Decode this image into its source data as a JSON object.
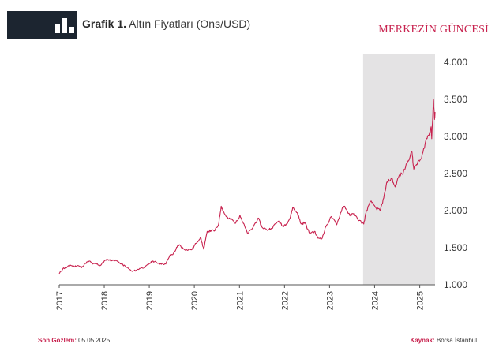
{
  "header": {
    "figure_label": "Grafik 1.",
    "title": "Altın Fiyatları (Ons/USD)",
    "brand": "MERKEZİN GÜNCESİ"
  },
  "footer": {
    "last_obs_label": "Son Gözlem:",
    "last_obs_value": "05.05.2025",
    "source_label": "Kaynak:",
    "source_value": "Borsa İstanbul"
  },
  "colors": {
    "line": "#c8234f",
    "highlight": "#e4e3e4",
    "header_badge": "#1c2530",
    "brand": "#c8234f"
  },
  "chart_data": {
    "type": "line",
    "title": "Altın Fiyatları (Ons/USD)",
    "xlabel": "",
    "ylabel": "",
    "ylim": [
      1000,
      4000
    ],
    "yticks": [
      1000,
      1500,
      2000,
      2500,
      3000,
      3500,
      4000
    ],
    "ytick_labels": [
      "1.000",
      "1.500",
      "2.000",
      "2.500",
      "3.000",
      "3.500",
      "4.000"
    ],
    "xlim": [
      "2017-01-01",
      "2025-05-05"
    ],
    "xticks": [
      "2017",
      "2018",
      "2019",
      "2020",
      "2021",
      "2022",
      "2023",
      "2024",
      "2025"
    ],
    "y_axis_position": "right",
    "grid": false,
    "highlight_range": [
      "2023-09-30",
      "2025-05-05"
    ],
    "series": [
      {
        "values": [
          [
            "2017-01-01",
            1150
          ],
          [
            "2017-02-01",
            1220
          ],
          [
            "2017-03-01",
            1230
          ],
          [
            "2017-04-01",
            1265
          ],
          [
            "2017-05-01",
            1245
          ],
          [
            "2017-06-01",
            1260
          ],
          [
            "2017-07-01",
            1230
          ],
          [
            "2017-08-01",
            1290
          ],
          [
            "2017-09-01",
            1320
          ],
          [
            "2017-10-01",
            1280
          ],
          [
            "2017-11-01",
            1280
          ],
          [
            "2017-12-01",
            1260
          ],
          [
            "2018-01-01",
            1320
          ],
          [
            "2018-02-01",
            1340
          ],
          [
            "2018-03-01",
            1325
          ],
          [
            "2018-04-01",
            1335
          ],
          [
            "2018-05-01",
            1300
          ],
          [
            "2018-06-01",
            1270
          ],
          [
            "2018-07-01",
            1235
          ],
          [
            "2018-08-15",
            1180
          ],
          [
            "2018-09-15",
            1195
          ],
          [
            "2018-10-15",
            1220
          ],
          [
            "2018-12-01",
            1240
          ],
          [
            "2019-01-01",
            1285
          ],
          [
            "2019-02-01",
            1320
          ],
          [
            "2019-03-01",
            1300
          ],
          [
            "2019-04-01",
            1285
          ],
          [
            "2019-05-15",
            1280
          ],
          [
            "2019-06-15",
            1390
          ],
          [
            "2019-07-15",
            1420
          ],
          [
            "2019-08-15",
            1510
          ],
          [
            "2019-09-01",
            1540
          ],
          [
            "2019-10-01",
            1490
          ],
          [
            "2019-11-01",
            1470
          ],
          [
            "2019-12-15",
            1480
          ],
          [
            "2020-01-15",
            1560
          ],
          [
            "2020-02-20",
            1640
          ],
          [
            "2020-03-18",
            1480
          ],
          [
            "2020-04-15",
            1720
          ],
          [
            "2020-05-15",
            1730
          ],
          [
            "2020-06-15",
            1730
          ],
          [
            "2020-07-15",
            1810
          ],
          [
            "2020-08-06",
            2060
          ],
          [
            "2020-09-01",
            1960
          ],
          [
            "2020-10-01",
            1890
          ],
          [
            "2020-11-01",
            1880
          ],
          [
            "2020-12-01",
            1830
          ],
          [
            "2021-01-05",
            1940
          ],
          [
            "2021-02-01",
            1830
          ],
          [
            "2021-03-08",
            1690
          ],
          [
            "2021-04-15",
            1760
          ],
          [
            "2021-06-01",
            1900
          ],
          [
            "2021-07-01",
            1780
          ],
          [
            "2021-08-10",
            1740
          ],
          [
            "2021-09-15",
            1760
          ],
          [
            "2021-11-15",
            1860
          ],
          [
            "2021-12-15",
            1790
          ],
          [
            "2022-01-15",
            1820
          ],
          [
            "2022-02-15",
            1900
          ],
          [
            "2022-03-08",
            2040
          ],
          [
            "2022-04-15",
            1970
          ],
          [
            "2022-05-15",
            1820
          ],
          [
            "2022-06-15",
            1840
          ],
          [
            "2022-07-20",
            1700
          ],
          [
            "2022-09-01",
            1720
          ],
          [
            "2022-09-28",
            1630
          ],
          [
            "2022-11-03",
            1630
          ],
          [
            "2022-12-01",
            1780
          ],
          [
            "2023-01-15",
            1920
          ],
          [
            "2023-02-28",
            1810
          ],
          [
            "2023-04-15",
            2040
          ],
          [
            "2023-05-04",
            2060
          ],
          [
            "2023-06-15",
            1930
          ],
          [
            "2023-07-15",
            1960
          ],
          [
            "2023-08-15",
            1890
          ],
          [
            "2023-10-05",
            1820
          ],
          [
            "2023-10-27",
            2000
          ],
          [
            "2023-12-04",
            2130
          ],
          [
            "2024-01-15",
            2030
          ],
          [
            "2024-02-15",
            2000
          ],
          [
            "2024-03-15",
            2170
          ],
          [
            "2024-04-12",
            2390
          ],
          [
            "2024-05-20",
            2430
          ],
          [
            "2024-06-15",
            2320
          ],
          [
            "2024-07-17",
            2470
          ],
          [
            "2024-08-20",
            2510
          ],
          [
            "2024-09-26",
            2670
          ],
          [
            "2024-10-30",
            2790
          ],
          [
            "2024-11-14",
            2560
          ],
          [
            "2024-12-15",
            2650
          ],
          [
            "2025-01-15",
            2700
          ],
          [
            "2025-02-20",
            2950
          ],
          [
            "2025-03-20",
            3040
          ],
          [
            "2025-04-03",
            3130
          ],
          [
            "2025-04-08",
            2970
          ],
          [
            "2025-04-22",
            3500
          ],
          [
            "2025-05-01",
            3230
          ],
          [
            "2025-05-05",
            3330
          ]
        ]
      }
    ]
  }
}
